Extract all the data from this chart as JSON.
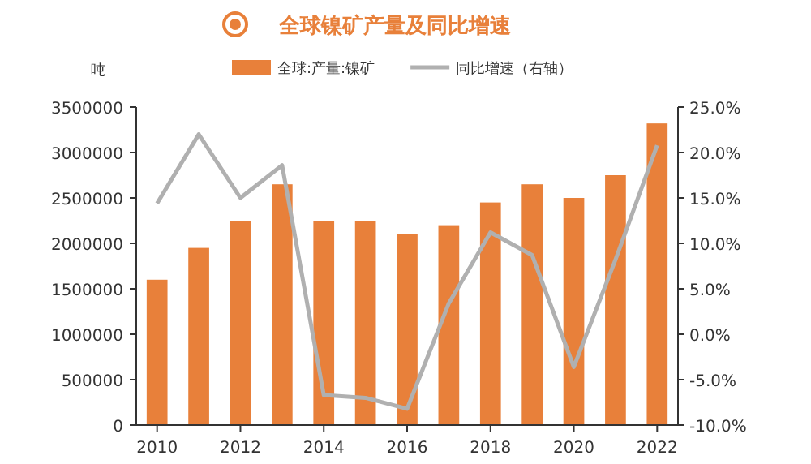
{
  "chart_data": {
    "type": "bar",
    "title": "全球镍矿产量及同比增速",
    "ylabel": "吨",
    "x": [
      2010,
      2011,
      2012,
      2013,
      2014,
      2015,
      2016,
      2017,
      2018,
      2019,
      2020,
      2021,
      2022
    ],
    "xlim": [
      2009.5,
      2022.5
    ],
    "xticks": [
      2010,
      2012,
      2014,
      2016,
      2018,
      2020,
      2022
    ],
    "ylim": [
      0,
      3500000
    ],
    "yticks": [
      0,
      500000,
      1000000,
      1500000,
      2000000,
      2500000,
      3000000,
      3500000
    ],
    "y2lim": [
      -10,
      25
    ],
    "y2ticks": [
      {
        "value": -10,
        "label": "-10.0%"
      },
      {
        "value": -5,
        "label": "-5.0%"
      },
      {
        "value": 0,
        "label": "0.0%"
      },
      {
        "value": 5,
        "label": "5.0%"
      },
      {
        "value": 10,
        "label": "10.0%"
      },
      {
        "value": 15,
        "label": "15.0%"
      },
      {
        "value": 20,
        "label": "20.0%"
      },
      {
        "value": 25,
        "label": "25.0%"
      }
    ],
    "legend": "top",
    "grid": false,
    "series": [
      {
        "name": "全球:产量:镍矿",
        "color": "#e8803a",
        "values": [
          1600000,
          1950000,
          2250000,
          2650000,
          2250000,
          2250000,
          2100000,
          2200000,
          2450000,
          2650000,
          2500000,
          2750000,
          3320000
        ]
      },
      {
        "name": "同比增速（右轴）",
        "type": "line",
        "axis": "y2",
        "color": "#b0b0b0",
        "values": [
          14.4,
          22.0,
          15.0,
          18.6,
          -6.7,
          -7.0,
          -8.2,
          3.4,
          11.2,
          8.7,
          -3.6,
          8.2,
          20.8
        ]
      }
    ]
  }
}
